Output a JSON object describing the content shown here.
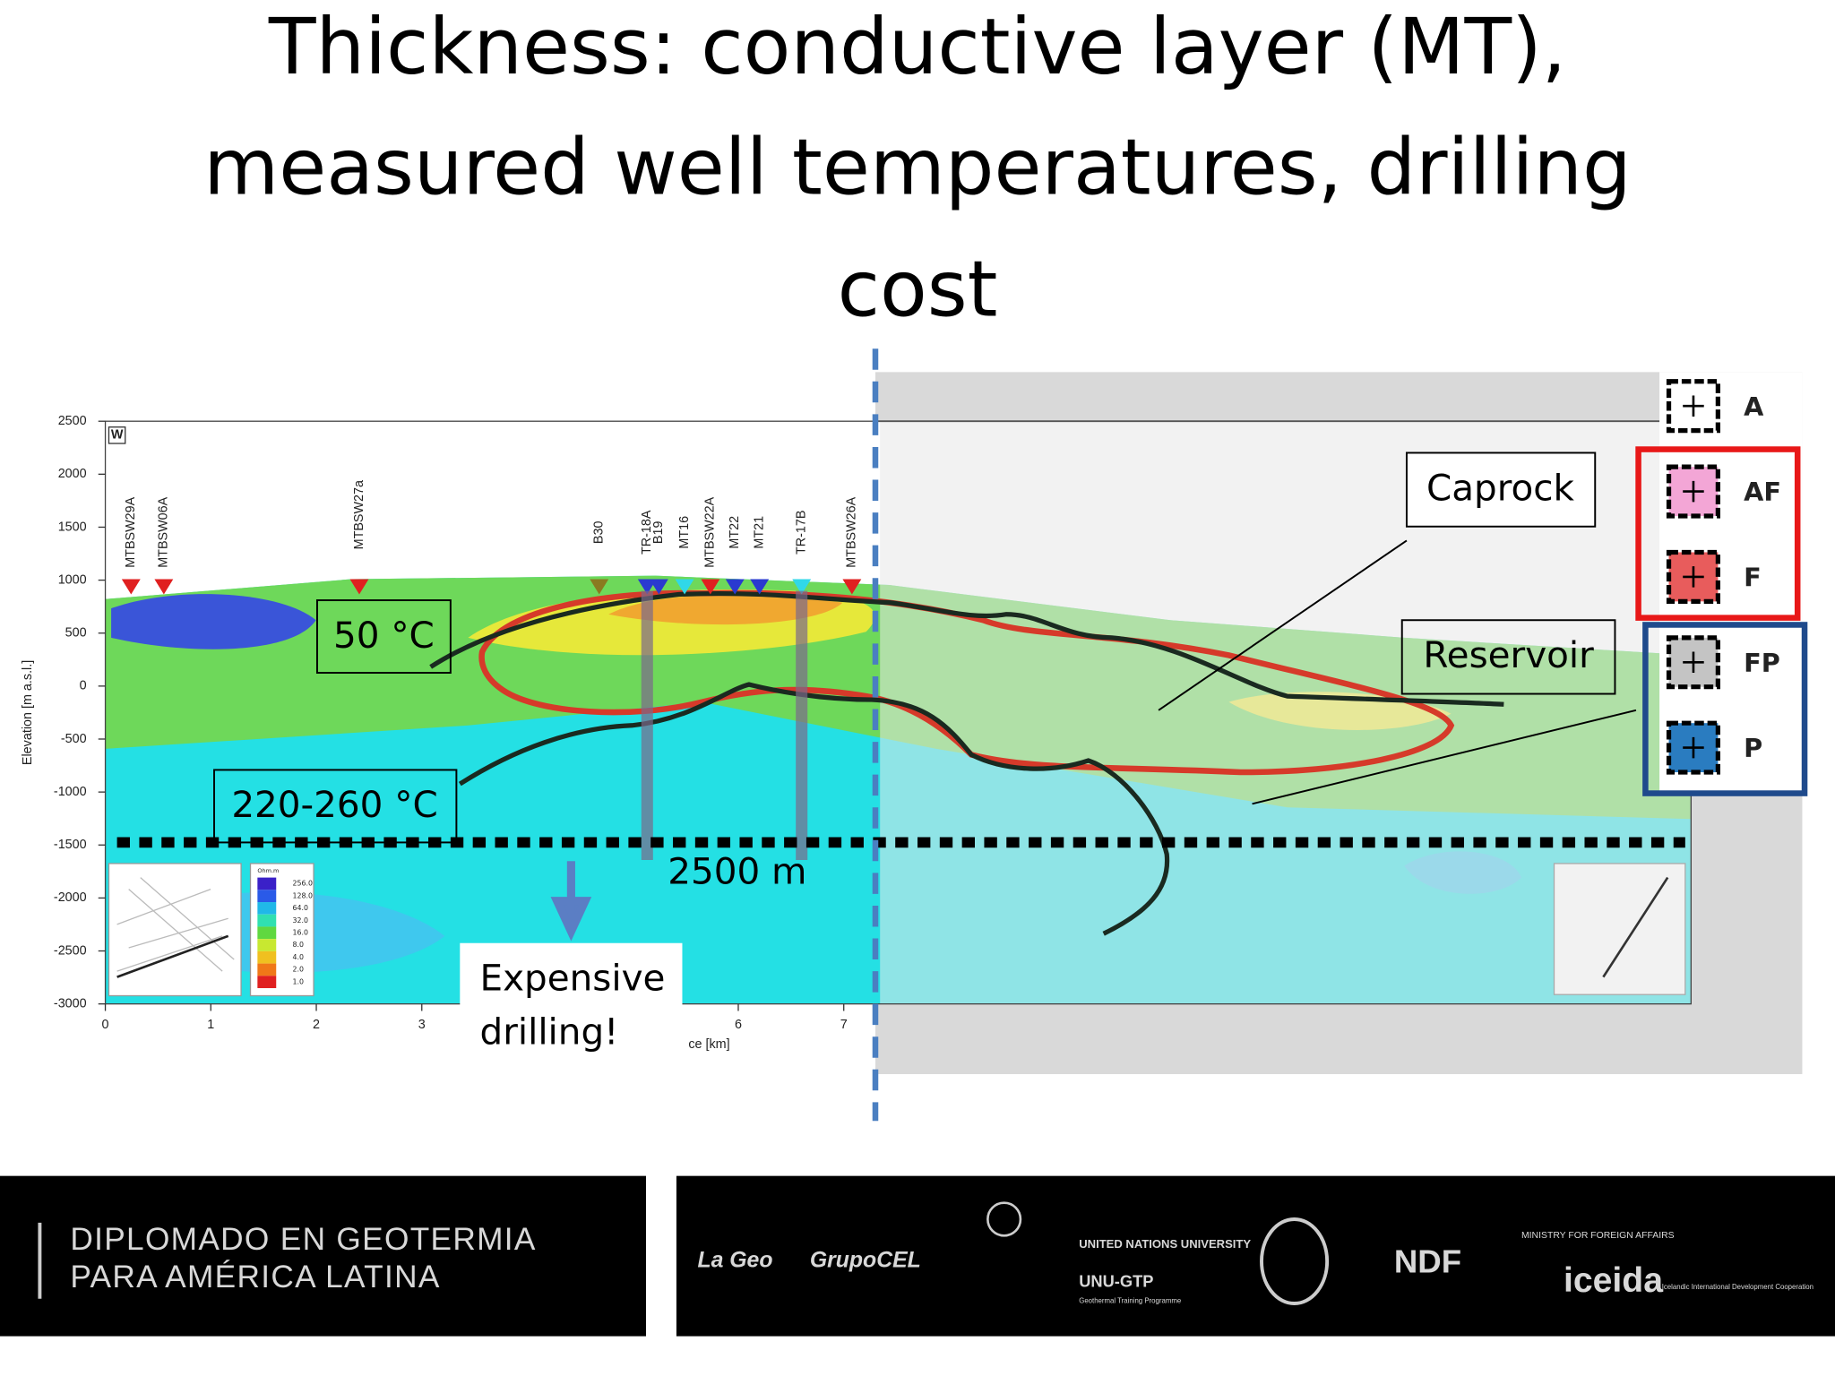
{
  "title": [
    "Thickness: conductive layer (MT),",
    "measured well temperatures, drilling",
    "cost"
  ],
  "section": {
    "panel_label": "W",
    "y_axis_label": "Elevation [m a.s.l.]",
    "x_axis_label": "ce [km]",
    "yticks": [
      2500,
      2000,
      1500,
      1000,
      500,
      0,
      -500,
      -1000,
      -1500,
      -2000,
      -2500,
      -3000
    ],
    "xticks": [
      0,
      1,
      2,
      3,
      6,
      7
    ],
    "wells": [
      "MTBSW29A",
      "MTBSW06A",
      "MTBSW27a",
      "B30",
      "TR-18A",
      "B19",
      "MT16",
      "MTBSW22A",
      "MT22",
      "MT21",
      "TR-17B",
      "MTBSW26A"
    ],
    "colorbar": {
      "title": "Ohm.m",
      "ticks": [
        "256.0",
        "128.0",
        "64.0",
        "32.0",
        "16.0",
        "8.0",
        "4.0",
        "2.0",
        "1.0"
      ]
    }
  },
  "annotations": {
    "temp_shallow": "50 °C",
    "temp_deep": "220-260 °C",
    "depth": "2500 m",
    "cost": [
      "Expensive",
      "drilling!"
    ],
    "caprock": "Caprock",
    "reservoir": "Reservoir"
  },
  "legend": [
    "A",
    "AF",
    "F",
    "FP",
    "P"
  ],
  "footer": {
    "program": [
      "DIPLOMADO EN GEOTERMIA",
      "PARA AMÉRICA LATINA"
    ],
    "logos": [
      "La Geo",
      "GrupoCEL",
      "UNITED NATIONS UNIVERSITY",
      "UNU-GTP",
      "Geothermal Training Programme",
      "NDF",
      "MINISTRY FOR FOREIGN AFFAIRS",
      "iceida",
      "Icelandic International Development Cooperation"
    ]
  }
}
